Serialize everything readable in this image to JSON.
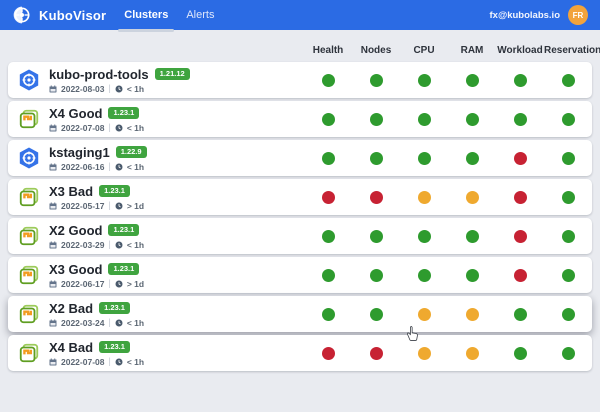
{
  "header": {
    "app_name": "KuboVisor",
    "tabs": [
      {
        "label": "Clusters",
        "active": true
      },
      {
        "label": "Alerts",
        "active": false
      }
    ],
    "user_email": "fx@kubolabs.io",
    "avatar_initials": "FR"
  },
  "columns": [
    "Health",
    "Nodes",
    "CPU",
    "RAM",
    "Workload",
    "Reservation"
  ],
  "rows": [
    {
      "name": "kubo-prod-tools",
      "version": "1.21.12",
      "date": "2022-08-03",
      "age": "< 1h",
      "icon": "kubernetes",
      "hovered": false,
      "statuses": [
        "green",
        "green",
        "green",
        "green",
        "green",
        "green"
      ]
    },
    {
      "name": "X4 Good",
      "version": "1.23.1",
      "date": "2022-07-08",
      "age": "< 1h",
      "icon": "vsphere",
      "hovered": false,
      "statuses": [
        "green",
        "green",
        "green",
        "green",
        "green",
        "green"
      ]
    },
    {
      "name": "kstaging1",
      "version": "1.22.9",
      "date": "2022-06-16",
      "age": "< 1h",
      "icon": "kubernetes",
      "hovered": false,
      "statuses": [
        "green",
        "green",
        "green",
        "green",
        "red",
        "green"
      ]
    },
    {
      "name": "X3 Bad",
      "version": "1.23.1",
      "date": "2022-05-17",
      "age": "> 1d",
      "icon": "vsphere",
      "hovered": false,
      "statuses": [
        "red",
        "red",
        "orange",
        "orange",
        "red",
        "green"
      ]
    },
    {
      "name": "X2 Good",
      "version": "1.23.1",
      "date": "2022-03-29",
      "age": "< 1h",
      "icon": "vsphere",
      "hovered": false,
      "statuses": [
        "green",
        "green",
        "green",
        "green",
        "red",
        "green"
      ]
    },
    {
      "name": "X3 Good",
      "version": "1.23.1",
      "date": "2022-06-17",
      "age": "> 1d",
      "icon": "vsphere",
      "hovered": false,
      "statuses": [
        "green",
        "green",
        "green",
        "green",
        "red",
        "green"
      ]
    },
    {
      "name": "X2 Bad",
      "version": "1.23.1",
      "date": "2022-03-24",
      "age": "< 1h",
      "icon": "vsphere",
      "hovered": true,
      "statuses": [
        "green",
        "green",
        "orange",
        "orange",
        "green",
        "green"
      ]
    },
    {
      "name": "X4 Bad",
      "version": "1.23.1",
      "date": "2022-07-08",
      "age": "< 1h",
      "icon": "vsphere",
      "hovered": false,
      "statuses": [
        "red",
        "red",
        "orange",
        "orange",
        "green",
        "green"
      ]
    }
  ],
  "colors": {
    "green": "#2e9b2e",
    "red": "#c72233",
    "orange": "#efa92f",
    "header_blue": "#2b6be4",
    "badge_green": "#3fa43f",
    "avatar_orange": "#f2a33b"
  }
}
